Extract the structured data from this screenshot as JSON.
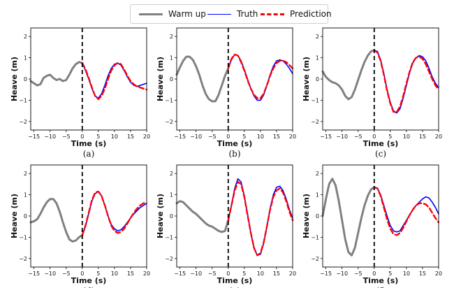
{
  "legend": {
    "warmup_label": "Warm up",
    "truth_label": "Truth",
    "prediction_label": "Prediction"
  },
  "colors": {
    "warmup": "#808080",
    "truth": "#0000ff",
    "prediction": "#ff0000",
    "divider": "#000000"
  },
  "chart_data": [
    {
      "type": "line",
      "panel_label": "(a)",
      "xlabel": "Time (s)",
      "ylabel": "Heave (m)",
      "xlim": [
        -16,
        20
      ],
      "ylim": [
        -2.4,
        2.4
      ],
      "xticks": [
        -15,
        -10,
        -5,
        0,
        5,
        10,
        15,
        20
      ],
      "yticks": [
        -2,
        -1,
        0,
        1,
        2
      ],
      "series": [
        {
          "name": "Warm up",
          "x": [
            -16,
            -15,
            -14,
            -13,
            -12,
            -11,
            -10,
            -9,
            -8,
            -7,
            -6,
            -5,
            -4,
            -3,
            -2,
            -1,
            0
          ],
          "y": [
            -0.1,
            -0.2,
            -0.3,
            -0.25,
            0.05,
            0.15,
            0.2,
            0.05,
            -0.05,
            0.0,
            -0.1,
            -0.05,
            0.2,
            0.5,
            0.7,
            0.8,
            0.75
          ]
        },
        {
          "name": "Truth",
          "x": [
            0,
            1,
            2,
            3,
            4,
            5,
            6,
            7,
            8,
            9,
            10,
            11,
            12,
            13,
            14,
            15,
            16,
            17,
            18,
            19,
            20
          ],
          "y": [
            0.75,
            0.4,
            0.0,
            -0.45,
            -0.8,
            -0.9,
            -0.7,
            -0.3,
            0.15,
            0.5,
            0.7,
            0.75,
            0.65,
            0.4,
            0.1,
            -0.15,
            -0.3,
            -0.35,
            -0.3,
            -0.25,
            -0.2
          ]
        },
        {
          "name": "Prediction",
          "x": [
            0,
            1,
            2,
            3,
            4,
            5,
            6,
            7,
            8,
            9,
            10,
            11,
            12,
            13,
            14,
            15,
            16,
            17,
            18,
            19,
            20
          ],
          "y": [
            0.75,
            0.45,
            0.05,
            -0.4,
            -0.8,
            -0.95,
            -0.8,
            -0.45,
            0.0,
            0.4,
            0.65,
            0.75,
            0.7,
            0.45,
            0.15,
            -0.1,
            -0.25,
            -0.35,
            -0.4,
            -0.45,
            -0.5
          ]
        }
      ]
    },
    {
      "type": "line",
      "panel_label": "(b)",
      "xlabel": "Time (s)",
      "ylabel": "Heave (m)",
      "xlim": [
        -16,
        20
      ],
      "ylim": [
        -2.4,
        2.4
      ],
      "xticks": [
        -15,
        -10,
        -5,
        0,
        5,
        10,
        15,
        20
      ],
      "yticks": [
        -2,
        -1,
        0,
        1,
        2
      ],
      "series": [
        {
          "name": "Warm up",
          "x": [
            -16,
            -15,
            -14,
            -13,
            -12,
            -11,
            -10,
            -9,
            -8,
            -7,
            -6,
            -5,
            -4,
            -3,
            -2,
            -1,
            0
          ],
          "y": [
            0.2,
            0.55,
            0.85,
            1.05,
            1.05,
            0.9,
            0.6,
            0.2,
            -0.3,
            -0.7,
            -0.95,
            -1.05,
            -1.05,
            -0.75,
            -0.3,
            0.15,
            0.5
          ]
        },
        {
          "name": "Truth",
          "x": [
            0,
            1,
            2,
            3,
            4,
            5,
            6,
            7,
            8,
            9,
            10,
            11,
            12,
            13,
            14,
            15,
            16,
            17,
            18,
            19,
            20
          ],
          "y": [
            0.5,
            0.9,
            1.15,
            1.1,
            0.85,
            0.45,
            0.0,
            -0.45,
            -0.8,
            -1.0,
            -1.0,
            -0.75,
            -0.3,
            0.2,
            0.6,
            0.85,
            0.9,
            0.85,
            0.7,
            0.5,
            0.25
          ]
        },
        {
          "name": "Prediction",
          "x": [
            0,
            1,
            2,
            3,
            4,
            5,
            6,
            7,
            8,
            9,
            10,
            11,
            12,
            13,
            14,
            15,
            16,
            17,
            18,
            19,
            20
          ],
          "y": [
            0.5,
            0.95,
            1.15,
            1.1,
            0.8,
            0.4,
            -0.05,
            -0.45,
            -0.75,
            -0.9,
            -0.9,
            -0.7,
            -0.3,
            0.15,
            0.5,
            0.75,
            0.85,
            0.85,
            0.8,
            0.65,
            0.5
          ]
        }
      ]
    },
    {
      "type": "line",
      "panel_label": "(c)",
      "xlabel": "Time (s)",
      "ylabel": "Heave (m)",
      "xlim": [
        -16,
        20
      ],
      "ylim": [
        -2.4,
        2.4
      ],
      "xticks": [
        -15,
        -10,
        -5,
        0,
        5,
        10,
        15,
        20
      ],
      "yticks": [
        -2,
        -1,
        0,
        1,
        2
      ],
      "series": [
        {
          "name": "Warm up",
          "x": [
            -16,
            -15,
            -14,
            -13,
            -12,
            -11,
            -10,
            -9,
            -8,
            -7,
            -6,
            -5,
            -4,
            -3,
            -2,
            -1,
            0
          ],
          "y": [
            0.35,
            0.1,
            -0.05,
            -0.15,
            -0.2,
            -0.3,
            -0.5,
            -0.8,
            -0.95,
            -0.85,
            -0.5,
            -0.05,
            0.4,
            0.8,
            1.1,
            1.3,
            1.35
          ]
        },
        {
          "name": "Truth",
          "x": [
            0,
            1,
            2,
            3,
            4,
            5,
            6,
            7,
            8,
            9,
            10,
            11,
            12,
            13,
            14,
            15,
            16,
            17,
            18,
            19,
            20
          ],
          "y": [
            1.35,
            1.3,
            0.9,
            0.25,
            -0.5,
            -1.1,
            -1.5,
            -1.6,
            -1.4,
            -0.9,
            -0.3,
            0.3,
            0.75,
            1.0,
            1.1,
            1.05,
            0.85,
            0.5,
            0.1,
            -0.2,
            -0.4
          ]
        },
        {
          "name": "Prediction",
          "x": [
            0,
            1,
            2,
            3,
            4,
            5,
            6,
            7,
            8,
            9,
            10,
            11,
            12,
            13,
            14,
            15,
            16,
            17,
            18,
            19,
            20
          ],
          "y": [
            1.35,
            1.25,
            0.85,
            0.2,
            -0.55,
            -1.15,
            -1.55,
            -1.55,
            -1.3,
            -0.8,
            -0.2,
            0.35,
            0.8,
            1.0,
            1.05,
            0.95,
            0.7,
            0.35,
            0.0,
            -0.3,
            -0.5
          ]
        }
      ]
    },
    {
      "type": "line",
      "panel_label": "(d)",
      "xlabel": "Time (s)",
      "ylabel": "Heave (m)",
      "xlim": [
        -16,
        20
      ],
      "ylim": [
        -2.4,
        2.4
      ],
      "xticks": [
        -15,
        -10,
        -5,
        0,
        5,
        10,
        15,
        20
      ],
      "yticks": [
        -2,
        -1,
        0,
        1,
        2
      ],
      "series": [
        {
          "name": "Warm up",
          "x": [
            -16,
            -15,
            -14,
            -13,
            -12,
            -11,
            -10,
            -9,
            -8,
            -7,
            -6,
            -5,
            -4,
            -3,
            -2,
            -1,
            0
          ],
          "y": [
            -0.3,
            -0.25,
            -0.15,
            0.1,
            0.4,
            0.65,
            0.8,
            0.8,
            0.6,
            0.2,
            -0.3,
            -0.75,
            -1.1,
            -1.2,
            -1.15,
            -1.0,
            -0.9
          ]
        },
        {
          "name": "Truth",
          "x": [
            0,
            1,
            2,
            3,
            4,
            5,
            6,
            7,
            8,
            9,
            10,
            11,
            12,
            13,
            14,
            15,
            16,
            17,
            18,
            19,
            20
          ],
          "y": [
            -0.9,
            -0.5,
            0.1,
            0.7,
            1.05,
            1.15,
            0.95,
            0.5,
            0.0,
            -0.4,
            -0.6,
            -0.7,
            -0.65,
            -0.5,
            -0.3,
            -0.1,
            0.1,
            0.25,
            0.4,
            0.5,
            0.6
          ]
        },
        {
          "name": "Prediction",
          "x": [
            0,
            1,
            2,
            3,
            4,
            5,
            6,
            7,
            8,
            9,
            10,
            11,
            12,
            13,
            14,
            15,
            16,
            17,
            18,
            19,
            20
          ],
          "y": [
            -0.9,
            -0.45,
            0.15,
            0.75,
            1.1,
            1.15,
            0.95,
            0.5,
            0.0,
            -0.45,
            -0.7,
            -0.8,
            -0.75,
            -0.6,
            -0.35,
            -0.1,
            0.15,
            0.35,
            0.5,
            0.6,
            0.65
          ]
        }
      ]
    },
    {
      "type": "line",
      "panel_label": "(e)",
      "xlabel": "Time (s)",
      "ylabel": "Heave (m)",
      "xlim": [
        -16,
        20
      ],
      "ylim": [
        -2.4,
        2.4
      ],
      "xticks": [
        -15,
        -10,
        -5,
        0,
        5,
        10,
        15,
        20
      ],
      "yticks": [
        -2,
        -1,
        0,
        1,
        2
      ],
      "series": [
        {
          "name": "Warm up",
          "x": [
            -16,
            -15,
            -14,
            -13,
            -12,
            -11,
            -10,
            -9,
            -8,
            -7,
            -6,
            -5,
            -4,
            -3,
            -2,
            -1,
            0
          ],
          "y": [
            0.6,
            0.7,
            0.65,
            0.5,
            0.35,
            0.2,
            0.1,
            -0.05,
            -0.2,
            -0.35,
            -0.45,
            -0.5,
            -0.6,
            -0.7,
            -0.75,
            -0.7,
            -0.2
          ]
        },
        {
          "name": "Truth",
          "x": [
            0,
            1,
            2,
            3,
            4,
            5,
            6,
            7,
            8,
            9,
            10,
            11,
            12,
            13,
            14,
            15,
            16,
            17,
            18,
            19,
            20
          ],
          "y": [
            -0.2,
            0.5,
            1.3,
            1.75,
            1.6,
            0.95,
            0.1,
            -0.8,
            -1.5,
            -1.85,
            -1.8,
            -1.3,
            -0.5,
            0.35,
            1.0,
            1.35,
            1.4,
            1.2,
            0.8,
            0.3,
            -0.1
          ]
        },
        {
          "name": "Prediction",
          "x": [
            0,
            1,
            2,
            3,
            4,
            5,
            6,
            7,
            8,
            9,
            10,
            11,
            12,
            13,
            14,
            15,
            16,
            17,
            18,
            19,
            20
          ],
          "y": [
            -0.2,
            0.5,
            1.2,
            1.6,
            1.5,
            0.9,
            0.05,
            -0.8,
            -1.5,
            -1.85,
            -1.75,
            -1.25,
            -0.5,
            0.3,
            0.9,
            1.2,
            1.3,
            1.1,
            0.7,
            0.2,
            -0.2
          ]
        }
      ]
    },
    {
      "type": "line",
      "panel_label": "(f)",
      "xlabel": "Time (s)",
      "ylabel": "Heave (m)",
      "xlim": [
        -16,
        20
      ],
      "ylim": [
        -2.4,
        2.4
      ],
      "xticks": [
        -15,
        -10,
        -5,
        0,
        5,
        10,
        15,
        20
      ],
      "yticks": [
        -2,
        -1,
        0,
        1,
        2
      ],
      "series": [
        {
          "name": "Warm up",
          "x": [
            -16,
            -15,
            -14,
            -13,
            -12,
            -11,
            -10,
            -9,
            -8,
            -7,
            -6,
            -5,
            -4,
            -3,
            -2,
            -1,
            0
          ],
          "y": [
            0.0,
            0.8,
            1.5,
            1.75,
            1.45,
            0.7,
            -0.2,
            -1.1,
            -1.7,
            -1.85,
            -1.5,
            -0.8,
            -0.1,
            0.5,
            0.95,
            1.25,
            1.35
          ]
        },
        {
          "name": "Truth",
          "x": [
            0,
            1,
            2,
            3,
            4,
            5,
            6,
            7,
            8,
            9,
            10,
            11,
            12,
            13,
            14,
            15,
            16,
            17,
            18,
            19,
            20
          ],
          "y": [
            1.35,
            1.3,
            1.0,
            0.5,
            0.0,
            -0.45,
            -0.7,
            -0.75,
            -0.7,
            -0.45,
            -0.2,
            0.05,
            0.3,
            0.5,
            0.65,
            0.8,
            0.9,
            0.85,
            0.65,
            0.4,
            0.1
          ]
        },
        {
          "name": "Prediction",
          "x": [
            0,
            1,
            2,
            3,
            4,
            5,
            6,
            7,
            8,
            9,
            10,
            11,
            12,
            13,
            14,
            15,
            16,
            17,
            18,
            19,
            20
          ],
          "y": [
            1.35,
            1.3,
            0.95,
            0.4,
            -0.15,
            -0.6,
            -0.85,
            -0.9,
            -0.8,
            -0.55,
            -0.25,
            0.05,
            0.3,
            0.5,
            0.6,
            0.6,
            0.55,
            0.4,
            0.15,
            -0.1,
            -0.3
          ]
        }
      ]
    }
  ]
}
